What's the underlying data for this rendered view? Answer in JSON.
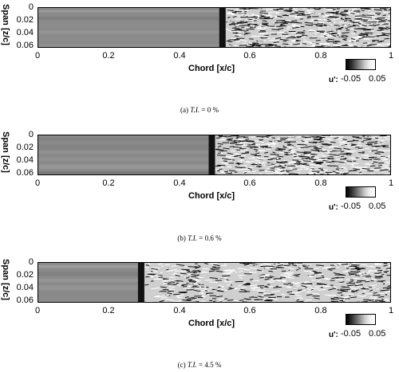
{
  "panels": [
    {
      "caption_prefix": "(a)",
      "caption_var": "T.I.",
      "caption_value": "= 0 %",
      "ylabel": "Span [z/c]",
      "yticks": [
        "0",
        "0.02",
        "0.04",
        "0.06"
      ],
      "xticks": [
        "0",
        "0.2",
        "0.4",
        "0.6",
        "0.8",
        "1"
      ],
      "xlabel": "Chord [x/c]",
      "cbar_label": "u':",
      "cbar_min": "-0.05",
      "cbar_max": "0.05",
      "transition_x": 0.53
    },
    {
      "caption_prefix": "(b)",
      "caption_var": "T.I.",
      "caption_value": "= 0.6 %",
      "ylabel": "Span [z/c]",
      "yticks": [
        "0",
        "0.02",
        "0.04",
        "0.06"
      ],
      "xticks": [
        "0",
        "0.2",
        "0.4",
        "0.6",
        "0.8",
        "1"
      ],
      "xlabel": "Chord [x/c]",
      "cbar_label": "u':",
      "cbar_min": "-0.05",
      "cbar_max": "0.05",
      "transition_x": 0.5
    },
    {
      "caption_prefix": "(c)",
      "caption_var": "T.I.",
      "caption_value": "= 4.5 %",
      "ylabel": "Span [z/c]",
      "yticks": [
        "0",
        "0.02",
        "0.04",
        "0.06"
      ],
      "xticks": [
        "0",
        "0.2",
        "0.4",
        "0.6",
        "0.8",
        "1"
      ],
      "xlabel": "Chord [x/c]",
      "cbar_label": "u':",
      "cbar_min": "-0.05",
      "cbar_max": "0.05",
      "transition_x": 0.3
    }
  ]
}
